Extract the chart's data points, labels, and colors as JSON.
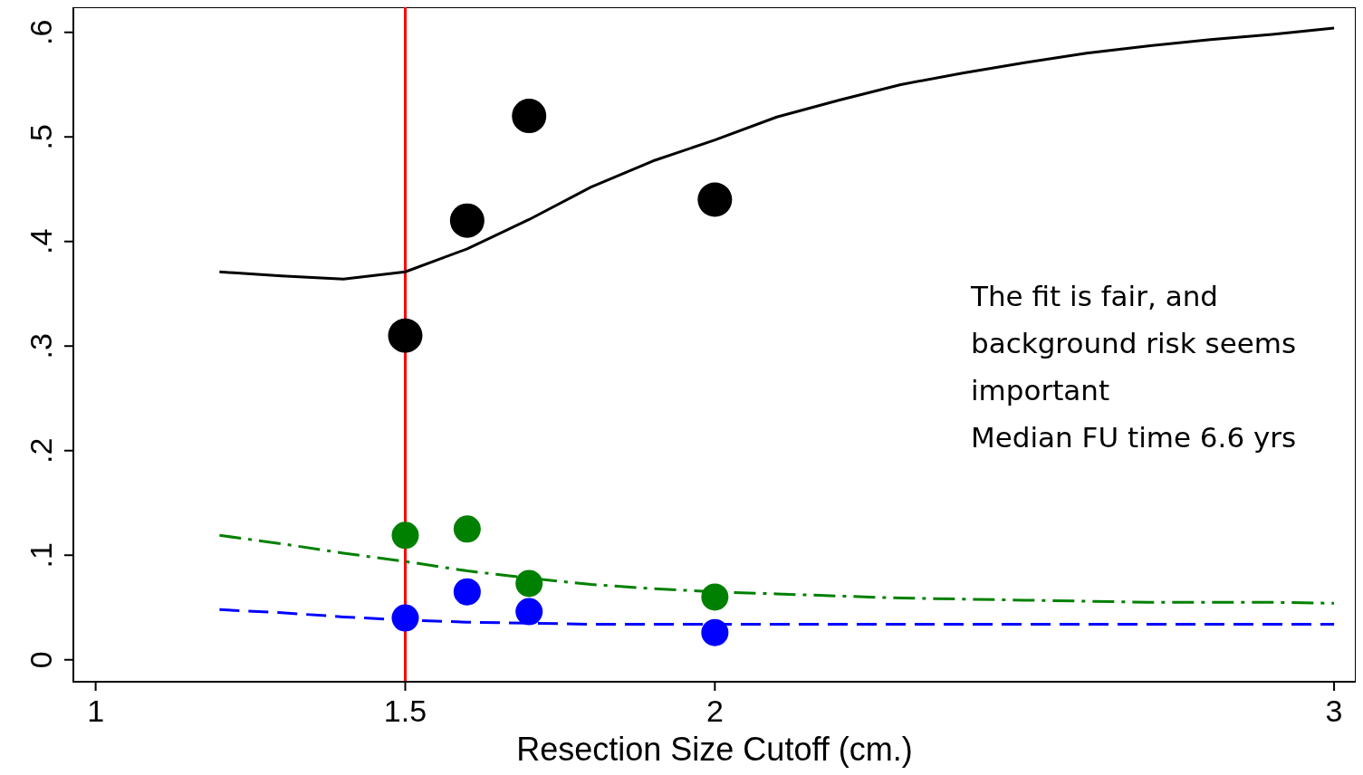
{
  "chart_data": {
    "type": "scatter",
    "xlabel": "Resection Size Cutoff (cm.)",
    "xlim": [
      0.964,
      3.035
    ],
    "ylim": [
      -0.021,
      0.624
    ],
    "xticks": [
      1,
      1.5,
      2,
      3
    ],
    "yticks": [
      {
        "value": 0,
        "label": "0"
      },
      {
        "value": 0.1,
        "label": ".1"
      },
      {
        "value": 0.2,
        "label": ".2"
      },
      {
        "value": 0.3,
        "label": ".3"
      },
      {
        "value": 0.4,
        "label": ".4"
      },
      {
        "value": 0.5,
        "label": ".5"
      },
      {
        "value": 0.6,
        "label": ".6"
      }
    ],
    "grid": false,
    "ref_lines": [
      {
        "axis": "x",
        "value": 1.5,
        "color": "#ff0000",
        "line_style": "solid"
      }
    ],
    "annotations": [
      "The fit is fair, and background risk seems important",
      "Median FU time 6.6 yrs"
    ],
    "series": [
      {
        "type": "line",
        "color": "#000000",
        "line_style": "solid",
        "marker": "none",
        "x": [
          1.2,
          1.3,
          1.4,
          1.5,
          1.6,
          1.7,
          1.8,
          1.9,
          2.0,
          2.1,
          2.2,
          2.3,
          2.4,
          2.5,
          2.6,
          2.7,
          2.8,
          2.9,
          3.0
        ],
        "values": [
          0.371,
          0.367,
          0.364,
          0.371,
          0.393,
          0.421,
          0.452,
          0.477,
          0.497,
          0.519,
          0.535,
          0.55,
          0.561,
          0.571,
          0.58,
          0.587,
          0.593,
          0.598,
          0.604
        ]
      },
      {
        "type": "line",
        "color": "#008000",
        "line_style": "dashdot",
        "marker": "none",
        "x": [
          1.2,
          1.3,
          1.4,
          1.5,
          1.6,
          1.7,
          1.8,
          1.9,
          2.0,
          2.1,
          2.2,
          2.3,
          2.4,
          2.5,
          2.6,
          2.7,
          2.8,
          2.9,
          3.0
        ],
        "values": [
          0.119,
          0.111,
          0.102,
          0.094,
          0.085,
          0.078,
          0.072,
          0.068,
          0.065,
          0.063,
          0.061,
          0.059,
          0.058,
          0.057,
          0.056,
          0.055,
          0.055,
          0.055,
          0.054
        ]
      },
      {
        "type": "line",
        "color": "#0000ff",
        "line_style": "dashed",
        "marker": "none",
        "x": [
          1.2,
          1.3,
          1.4,
          1.5,
          1.6,
          1.7,
          1.8,
          1.9,
          2.0,
          2.1,
          2.2,
          2.3,
          2.4,
          2.5,
          2.6,
          2.7,
          2.8,
          2.9,
          3.0
        ],
        "values": [
          0.048,
          0.045,
          0.041,
          0.038,
          0.036,
          0.035,
          0.034,
          0.034,
          0.034,
          0.034,
          0.034,
          0.034,
          0.034,
          0.034,
          0.034,
          0.034,
          0.034,
          0.034,
          0.034
        ]
      },
      {
        "color": "#000000",
        "marker": "circle",
        "x": [
          1.5,
          1.6,
          1.7,
          2.0
        ],
        "values": [
          0.31,
          0.42,
          0.52,
          0.44
        ]
      },
      {
        "color": "#008000",
        "marker": "circle",
        "x": [
          1.5,
          1.6,
          1.7,
          2.0
        ],
        "values": [
          0.119,
          0.125,
          0.073,
          0.06
        ]
      },
      {
        "color": "#0000ff",
        "marker": "circle",
        "x": [
          1.5,
          1.6,
          1.7,
          2.0
        ],
        "values": [
          0.04,
          0.065,
          0.046,
          0.026
        ]
      }
    ]
  }
}
